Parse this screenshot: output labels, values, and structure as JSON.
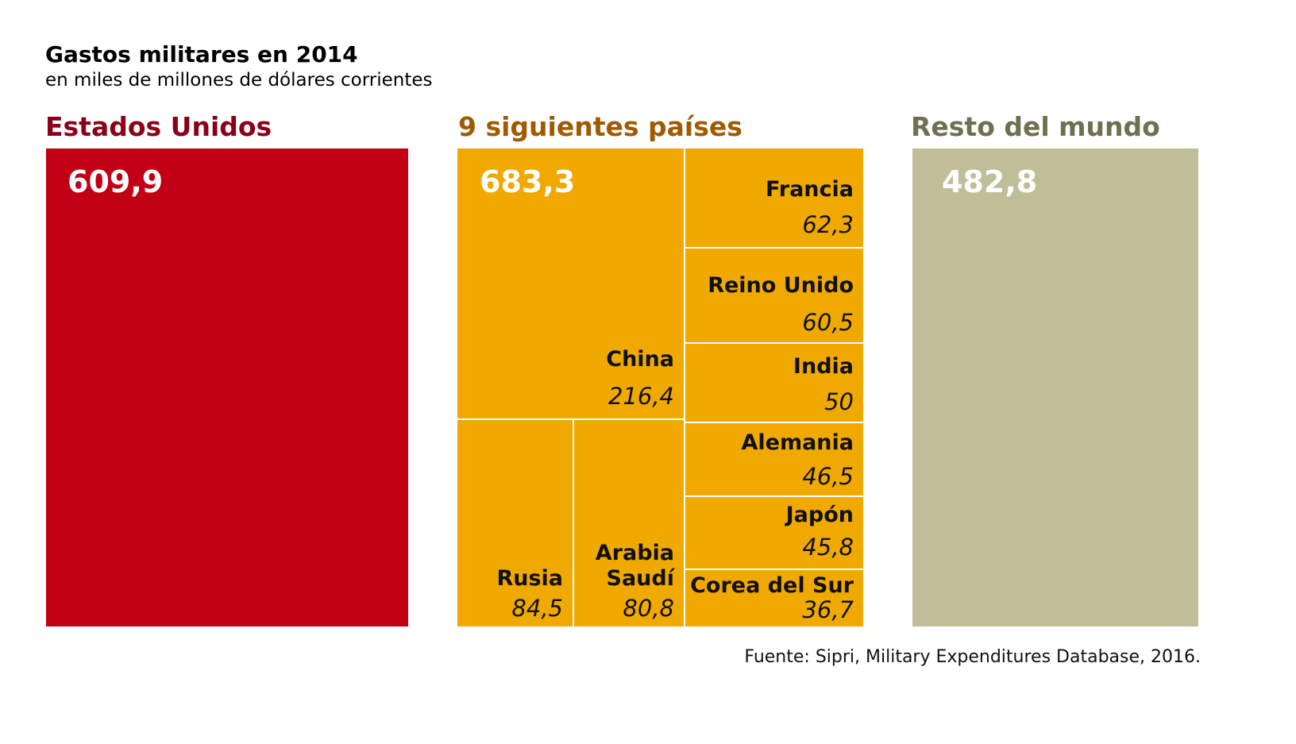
{
  "title": "Gastos militares en 2014",
  "subtitle": "en miles de millones de dólares corrientes",
  "source": "Fuente: Sipri, Military Expenditures Database, 2016.",
  "colors": {
    "us": "#c10016",
    "top9": "#f0a900",
    "rest": "#bfbe98",
    "us_head": "#8b0016",
    "top9_head": "#a05a00",
    "rest_head": "#6e7050"
  },
  "chart_data": {
    "type": "treemap",
    "title": "Gastos militares en 2014",
    "subtitle": "en miles de millones de dólares corrientes",
    "groups": [
      {
        "name": "Estados Unidos",
        "total": "609,9",
        "value": 609.9
      },
      {
        "name": "9 siguientes países",
        "total": "683,3",
        "value": 683.3,
        "children": [
          {
            "name": "China",
            "label": "216,4",
            "value": 216.4
          },
          {
            "name": "Rusia",
            "label": "84,5",
            "value": 84.5
          },
          {
            "name": "Arabia Saudí",
            "label": "80,8",
            "value": 80.8
          },
          {
            "name": "Francia",
            "label": "62,3",
            "value": 62.3
          },
          {
            "name": "Reino Unido",
            "label": "60,5",
            "value": 60.5
          },
          {
            "name": "India",
            "label": "50",
            "value": 50
          },
          {
            "name": "Alemania",
            "label": "46,5",
            "value": 46.5
          },
          {
            "name": "Japón",
            "label": "45,8",
            "value": 45.8
          },
          {
            "name": "Corea del Sur",
            "label": "36,7",
            "value": 36.7
          }
        ]
      },
      {
        "name": "Resto del mundo",
        "total": "482,8",
        "value": 482.8
      }
    ]
  }
}
